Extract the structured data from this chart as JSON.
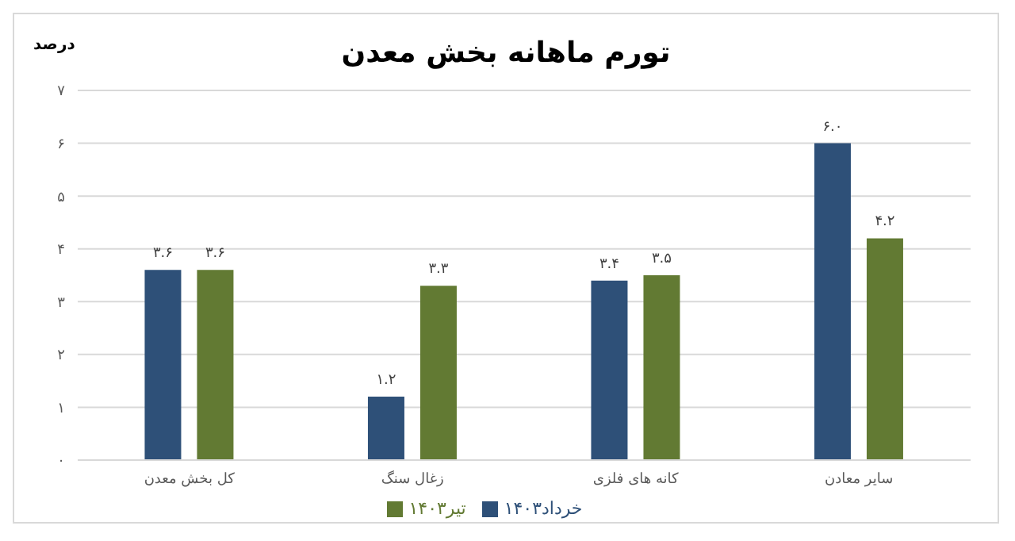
{
  "chart_data": {
    "type": "bar",
    "title": "تورم ماهانه بخش معدن",
    "ylabel": "درصد",
    "categories": [
      "کل بخش معدن",
      "زغال سنگ",
      "کانه های فلزی",
      "سایر معادن"
    ],
    "series": [
      {
        "name": "خرداد۱۴۰۳",
        "color": "#2e5078",
        "values": [
          3.6,
          1.2,
          3.4,
          6.0
        ],
        "value_labels": [
          "۳.۶",
          "۱.۲",
          "۳.۴",
          "۶.۰"
        ]
      },
      {
        "name": "تیر۱۴۰۳",
        "color": "#627a33",
        "values": [
          3.6,
          3.3,
          3.5,
          4.2
        ],
        "value_labels": [
          "۳.۶",
          "۳.۳",
          "۳.۵",
          "۴.۲"
        ]
      }
    ],
    "ylim": [
      0,
      7
    ],
    "yticks": [
      {
        "value": 0,
        "label": "۰"
      },
      {
        "value": 1,
        "label": "۱"
      },
      {
        "value": 2,
        "label": "۲"
      },
      {
        "value": 3,
        "label": "۳"
      },
      {
        "value": 4,
        "label": "۴"
      },
      {
        "value": 5,
        "label": "۵"
      },
      {
        "value": 6,
        "label": "۶"
      },
      {
        "value": 7,
        "label": "۷"
      }
    ],
    "grid": "y",
    "legend": "bottom"
  }
}
